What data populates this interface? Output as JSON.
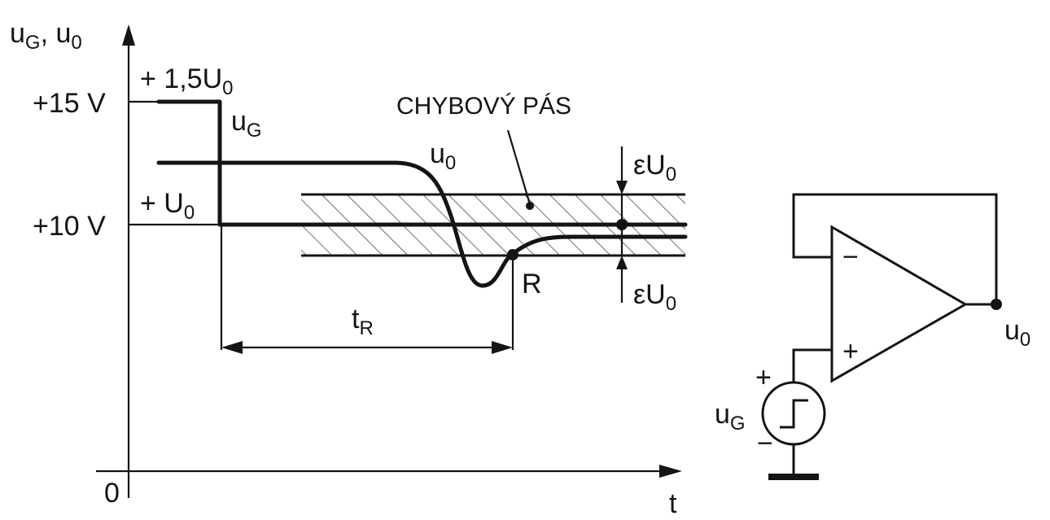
{
  "axes": {
    "y_label_main": "u",
    "y_label_sub1": "G",
    "y_label_sep": ", u",
    "y_label_sub2": "0",
    "x_label": "t",
    "origin_label": "0"
  },
  "levels": {
    "v15_label": "+15 V",
    "v10_label": "+10 V",
    "upper_main": "+ 1,5U",
    "upper_sub": "0",
    "lower_main": "+ U",
    "lower_sub": "0"
  },
  "signals": {
    "ug_main": "u",
    "ug_sub": "G",
    "u0_main": "u",
    "u0_sub": "0"
  },
  "band": {
    "label": "CHYBOVÝ PÁS",
    "eps_top_main": "εU",
    "eps_top_sub": "0",
    "eps_bottom_main": "εU",
    "eps_bottom_sub": "0"
  },
  "settle": {
    "point_label": "R",
    "time_main": "t",
    "time_sub": "R"
  },
  "circuit": {
    "minus_sign": "−",
    "plus_sign": "+",
    "src_plus": "+",
    "src_minus": "−",
    "src_main": "u",
    "src_sub": "G",
    "out_main": "u",
    "out_sub": "0"
  }
}
